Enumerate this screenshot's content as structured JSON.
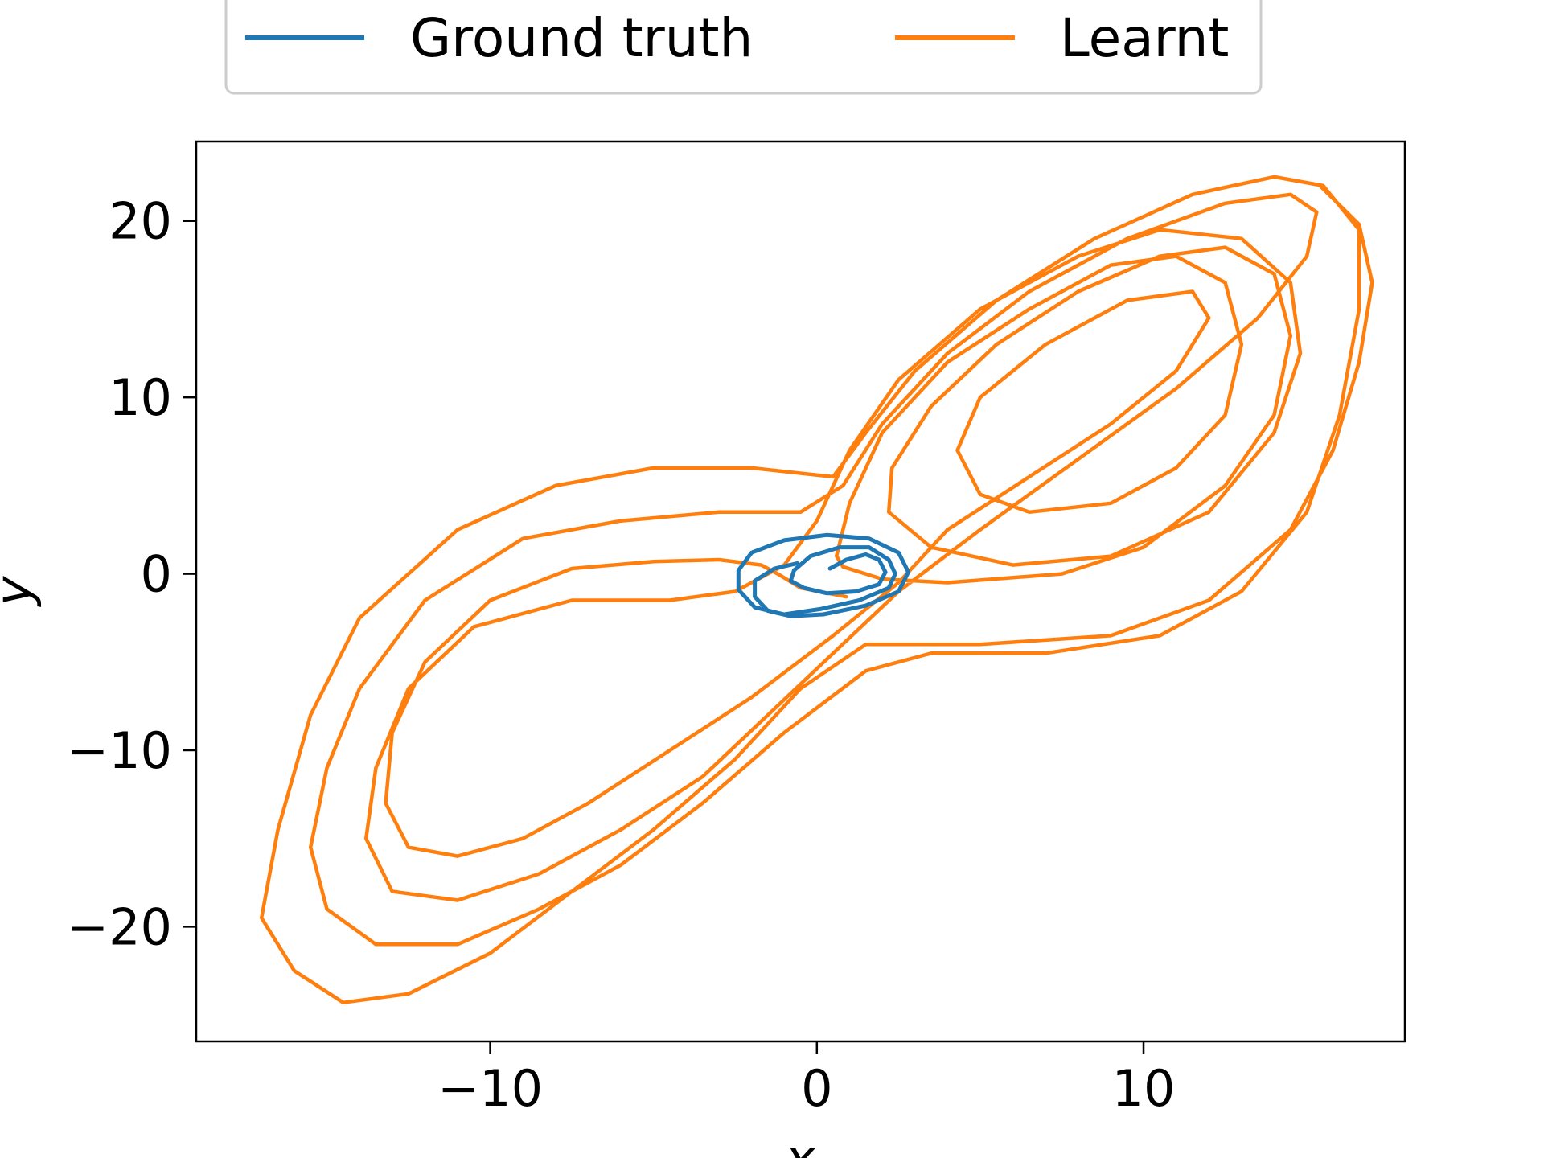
{
  "chart_data": {
    "type": "line",
    "xlabel": "x",
    "ylabel": "y",
    "xlim": [
      -19.0,
      18.0
    ],
    "ylim": [
      -26.5,
      24.5
    ],
    "x_ticks": [
      -10,
      0,
      10
    ],
    "y_ticks": [
      -20,
      -10,
      0,
      10,
      20
    ],
    "x_tick_labels": [
      "−10",
      "0",
      "10"
    ],
    "y_tick_labels": [
      "−20",
      "−10",
      "0",
      "10",
      "20"
    ],
    "grid": false,
    "legend": {
      "placement": "top-center-outside",
      "ncol": 2
    },
    "series": [
      {
        "name": "Ground truth",
        "color": "#1f77b4",
        "points": [
          [
            0.4,
            0.3
          ],
          [
            0.9,
            0.8
          ],
          [
            1.5,
            1.1
          ],
          [
            1.9,
            0.8
          ],
          [
            2.1,
            0.1
          ],
          [
            1.9,
            -0.6
          ],
          [
            1.2,
            -1.0
          ],
          [
            0.3,
            -1.1
          ],
          [
            -0.4,
            -0.8
          ],
          [
            -0.8,
            -0.4
          ],
          [
            -0.7,
            0.2
          ],
          [
            -0.2,
            1.0
          ],
          [
            0.7,
            1.5
          ],
          [
            1.6,
            1.5
          ],
          [
            2.2,
            0.8
          ],
          [
            2.4,
            0.0
          ],
          [
            2.2,
            -0.8
          ],
          [
            1.3,
            -1.5
          ],
          [
            0.1,
            -2.0
          ],
          [
            -1.0,
            -2.3
          ],
          [
            -1.9,
            -1.9
          ],
          [
            -2.4,
            -0.9
          ],
          [
            -2.4,
            0.2
          ],
          [
            -2.0,
            1.2
          ],
          [
            -1.0,
            1.9
          ],
          [
            0.3,
            2.2
          ],
          [
            1.6,
            2.0
          ],
          [
            2.5,
            1.2
          ],
          [
            2.8,
            0.1
          ],
          [
            2.5,
            -1.0
          ],
          [
            1.5,
            -1.8
          ],
          [
            0.2,
            -2.3
          ],
          [
            -0.8,
            -2.4
          ],
          [
            -1.5,
            -2.1
          ],
          [
            -1.9,
            -1.3
          ],
          [
            -1.9,
            -0.4
          ],
          [
            -1.3,
            0.3
          ],
          [
            -0.6,
            0.6
          ]
        ]
      },
      {
        "name": "Learnt",
        "color": "#ff7f0e",
        "points": [
          [
            0.9,
            -1.3
          ],
          [
            -0.5,
            -0.8
          ],
          [
            -1.2,
            0.0
          ],
          [
            -1.7,
            0.5
          ],
          [
            -3.0,
            0.8
          ],
          [
            -5.0,
            0.7
          ],
          [
            -7.5,
            0.3
          ],
          [
            -10.0,
            -1.5
          ],
          [
            -12.0,
            -5.0
          ],
          [
            -13.0,
            -9.0
          ],
          [
            -13.2,
            -13.0
          ],
          [
            -12.5,
            -15.5
          ],
          [
            -11.0,
            -16.0
          ],
          [
            -9.0,
            -15.0
          ],
          [
            -7.0,
            -13.0
          ],
          [
            -4.5,
            -10.0
          ],
          [
            -2.0,
            -7.0
          ],
          [
            0.5,
            -3.5
          ],
          [
            2.5,
            -0.5
          ],
          [
            4.0,
            2.5
          ],
          [
            6.5,
            5.5
          ],
          [
            9.0,
            8.5
          ],
          [
            11.0,
            11.5
          ],
          [
            12.0,
            14.5
          ],
          [
            11.5,
            16.0
          ],
          [
            9.5,
            15.5
          ],
          [
            7.0,
            13.0
          ],
          [
            5.0,
            10.0
          ],
          [
            4.3,
            7.0
          ],
          [
            5.0,
            4.5
          ],
          [
            6.5,
            3.5
          ],
          [
            9.0,
            4.0
          ],
          [
            11.0,
            6.0
          ],
          [
            12.5,
            9.0
          ],
          [
            13.0,
            13.0
          ],
          [
            12.5,
            16.5
          ],
          [
            11.0,
            18.0
          ],
          [
            9.0,
            17.5
          ],
          [
            6.5,
            15.0
          ],
          [
            4.0,
            12.0
          ],
          [
            2.0,
            8.0
          ],
          [
            1.0,
            4.0
          ],
          [
            0.6,
            1.0
          ],
          [
            0.8,
            0.4
          ],
          [
            2.0,
            -0.3
          ],
          [
            4.0,
            -0.5
          ],
          [
            7.5,
            0.0
          ],
          [
            10.0,
            1.5
          ],
          [
            12.5,
            5.0
          ],
          [
            14.0,
            9.0
          ],
          [
            14.5,
            13.5
          ],
          [
            14.0,
            17.0
          ],
          [
            12.5,
            18.5
          ],
          [
            10.5,
            18.0
          ],
          [
            8.0,
            16.0
          ],
          [
            5.5,
            13.0
          ],
          [
            3.5,
            9.5
          ],
          [
            2.3,
            6.0
          ],
          [
            2.2,
            3.5
          ],
          [
            3.5,
            1.5
          ],
          [
            6.0,
            0.5
          ],
          [
            9.0,
            1.0
          ],
          [
            12.0,
            3.5
          ],
          [
            14.0,
            8.0
          ],
          [
            14.8,
            12.5
          ],
          [
            14.5,
            16.5
          ],
          [
            13.0,
            19.0
          ],
          [
            10.5,
            19.5
          ],
          [
            8.0,
            18.0
          ],
          [
            5.0,
            15.0
          ],
          [
            2.5,
            11.0
          ],
          [
            1.0,
            7.0
          ],
          [
            0.0,
            3.0
          ],
          [
            -1.0,
            0.5
          ],
          [
            -2.5,
            -1.0
          ],
          [
            -4.5,
            -1.5
          ],
          [
            -7.5,
            -1.5
          ],
          [
            -10.5,
            -3.0
          ],
          [
            -12.5,
            -6.5
          ],
          [
            -13.5,
            -11.0
          ],
          [
            -13.8,
            -15.0
          ],
          [
            -13.0,
            -18.0
          ],
          [
            -11.0,
            -18.5
          ],
          [
            -8.5,
            -17.0
          ],
          [
            -6.0,
            -14.5
          ],
          [
            -3.5,
            -11.5
          ],
          [
            -1.5,
            -8.0
          ],
          [
            0.5,
            -4.5
          ],
          [
            2.5,
            -1.0
          ],
          [
            5.0,
            2.5
          ],
          [
            8.0,
            6.5
          ],
          [
            11.0,
            10.5
          ],
          [
            13.5,
            14.5
          ],
          [
            15.0,
            18.0
          ],
          [
            15.3,
            20.5
          ],
          [
            14.5,
            21.5
          ],
          [
            12.5,
            21.0
          ],
          [
            9.5,
            19.0
          ],
          [
            6.5,
            16.0
          ],
          [
            4.0,
            12.5
          ],
          [
            2.0,
            8.5
          ],
          [
            0.8,
            5.0
          ],
          [
            -0.5,
            3.5
          ],
          [
            -3.0,
            3.5
          ],
          [
            -6.0,
            3.0
          ],
          [
            -9.0,
            2.0
          ],
          [
            -12.0,
            -1.5
          ],
          [
            -14.0,
            -6.5
          ],
          [
            -15.0,
            -11.0
          ],
          [
            -15.5,
            -15.5
          ],
          [
            -15.0,
            -19.0
          ],
          [
            -13.5,
            -21.0
          ],
          [
            -11.0,
            -21.0
          ],
          [
            -8.5,
            -19.0
          ],
          [
            -6.0,
            -16.5
          ],
          [
            -3.5,
            -13.0
          ],
          [
            -1.0,
            -9.0
          ],
          [
            1.5,
            -5.5
          ],
          [
            3.5,
            -4.5
          ],
          [
            7.0,
            -4.5
          ],
          [
            10.5,
            -3.5
          ],
          [
            13.0,
            -1.0
          ],
          [
            15.0,
            3.5
          ],
          [
            16.0,
            9.0
          ],
          [
            16.6,
            15.0
          ],
          [
            16.6,
            19.5
          ],
          [
            15.5,
            22.0
          ],
          [
            14.0,
            22.5
          ],
          [
            11.5,
            21.5
          ],
          [
            8.5,
            19.0
          ],
          [
            5.5,
            15.5
          ],
          [
            3.0,
            11.5
          ],
          [
            1.5,
            8.0
          ],
          [
            0.5,
            5.5
          ],
          [
            -2.0,
            6.0
          ],
          [
            -5.0,
            6.0
          ],
          [
            -8.0,
            5.0
          ],
          [
            -11.0,
            2.5
          ],
          [
            -14.0,
            -2.5
          ],
          [
            -15.5,
            -8.0
          ],
          [
            -16.5,
            -14.5
          ],
          [
            -17.0,
            -19.5
          ],
          [
            -16.0,
            -22.5
          ],
          [
            -14.5,
            -24.3
          ],
          [
            -12.5,
            -23.8
          ],
          [
            -10.0,
            -21.5
          ],
          [
            -7.5,
            -18.0
          ],
          [
            -5.0,
            -14.5
          ],
          [
            -2.5,
            -10.5
          ],
          [
            -0.5,
            -6.5
          ],
          [
            1.5,
            -4.0
          ],
          [
            5.0,
            -4.0
          ],
          [
            9.0,
            -3.5
          ],
          [
            12.0,
            -1.5
          ],
          [
            14.5,
            2.5
          ],
          [
            15.8,
            7.0
          ],
          [
            16.6,
            12.0
          ],
          [
            17.0,
            16.5
          ],
          [
            16.6,
            19.8
          ],
          [
            15.4,
            22.0
          ]
        ]
      }
    ]
  }
}
